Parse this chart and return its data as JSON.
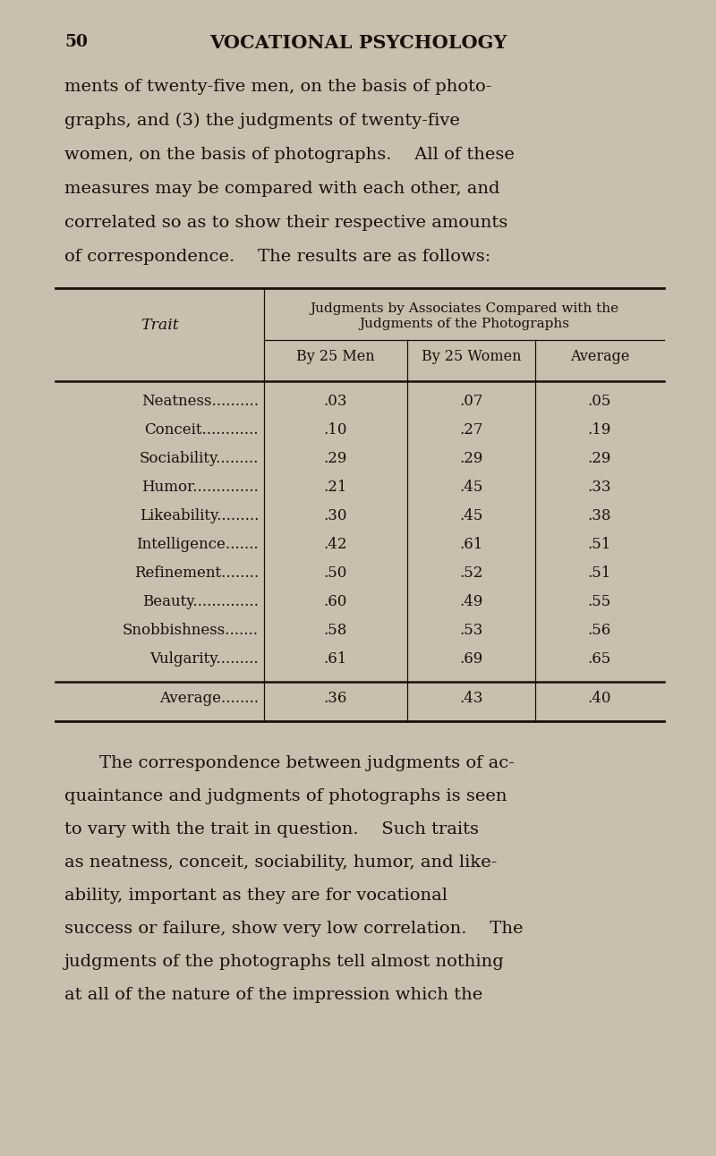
{
  "background_color": "#c9bfaf",
  "page_number": "50",
  "page_title": "VOCATIONAL PSYCHOLOGY",
  "intro_text": [
    "ments of twenty-five men, on the basis of photo-",
    "graphs, and (3) the judgments of twenty-five",
    "women, on the basis of photographs.  All of these",
    "measures may be compared with each other, and",
    "correlated so as to show their respective amounts",
    "of correspondence.  The results are as follows:"
  ],
  "table_header1": "Judgments by Associates Compared with the",
  "table_header2": "Judgments of the Photographs",
  "col_headers": [
    "By 25 Men",
    "By 25 Women",
    "Average"
  ],
  "row_label": "Trait",
  "traits": [
    "Neatness..........",
    "Conceit............",
    "Sociability.........",
    "Humor..............",
    "Likeability.........",
    "Intelligence.......",
    "Refinement........",
    "Beauty..............",
    "Snobbishness.......",
    "Vulgarity........."
  ],
  "values_men": [
    ".03",
    ".10",
    ".29",
    ".21",
    ".30",
    ".42",
    ".50",
    ".60",
    ".58",
    ".61"
  ],
  "values_women": [
    ".07",
    ".27",
    ".29",
    ".45",
    ".45",
    ".61",
    ".52",
    ".49",
    ".53",
    ".69"
  ],
  "values_avg": [
    ".05",
    ".19",
    ".29",
    ".33",
    ".38",
    ".51",
    ".51",
    ".55",
    ".56",
    ".65"
  ],
  "avg_label": "Average........",
  "avg_row": [
    ".36",
    ".43",
    ".40"
  ],
  "footer_text": [
    "  The correspondence between judgments of ac-",
    "quaintance and judgments of photographs is seen",
    "to vary with the trait in question.  Such traits",
    "as neatness, conceit, sociability, humor, and like-",
    "ability, important as they are for vocational",
    "success or failure, show very low correlation.  The",
    "judgments of the photographs tell almost nothing",
    "at all of the nature of the impression which the"
  ],
  "text_color": "#1a1008",
  "line_color": "#1a1008",
  "fig_width": 8.0,
  "fig_height": 12.92,
  "dpi": 100
}
